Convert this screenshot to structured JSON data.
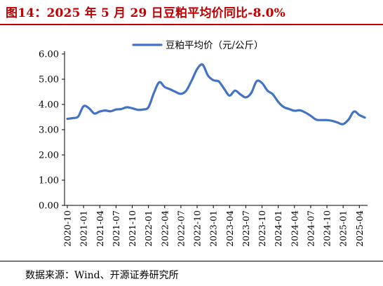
{
  "figure": {
    "title": "图14：2025 年 5 月 29 日豆粕平均价同比-8.0%",
    "source": "数据来源：Wind、开源证券研究所"
  },
  "colors": {
    "title": "#c00000",
    "series": "#4472c4",
    "axis": "#000000"
  },
  "chart_data": {
    "type": "line",
    "title": "",
    "xlabel": "",
    "ylabel": "",
    "ylim": [
      0,
      6
    ],
    "yticks": [
      "0.00",
      "1.00",
      "2.00",
      "3.00",
      "4.00",
      "5.00",
      "6.00"
    ],
    "grid": false,
    "legend_position": "top-center",
    "xticks": [
      "2020-10",
      "2021-01",
      "2021-04",
      "2021-07",
      "2021-10",
      "2022-01",
      "2022-04",
      "2022-07",
      "2022-10",
      "2023-01",
      "2023-04",
      "2023-07",
      "2023-10",
      "2024-01",
      "2024-04",
      "2024-07",
      "2024-10",
      "2025-01",
      "2025-04"
    ],
    "series": [
      {
        "name": "豆粕平均价（元/公斤）",
        "x": [
          "2020-10",
          "2020-11",
          "2020-12",
          "2021-01",
          "2021-02",
          "2021-03",
          "2021-04",
          "2021-05",
          "2021-06",
          "2021-07",
          "2021-08",
          "2021-09",
          "2021-10",
          "2021-11",
          "2021-12",
          "2022-01",
          "2022-02",
          "2022-03",
          "2022-04",
          "2022-05",
          "2022-06",
          "2022-07",
          "2022-08",
          "2022-09",
          "2022-10",
          "2022-11",
          "2022-12",
          "2023-01",
          "2023-02",
          "2023-03",
          "2023-04",
          "2023-05",
          "2023-06",
          "2023-07",
          "2023-08",
          "2023-09",
          "2023-10",
          "2023-11",
          "2023-12",
          "2024-01",
          "2024-02",
          "2024-03",
          "2024-04",
          "2024-05",
          "2024-06",
          "2024-07",
          "2024-08",
          "2024-09",
          "2024-10",
          "2024-11",
          "2024-12",
          "2025-01",
          "2025-02",
          "2025-03",
          "2025-04",
          "2025-05"
        ],
        "values": [
          3.43,
          3.46,
          3.52,
          3.93,
          3.85,
          3.64,
          3.72,
          3.76,
          3.73,
          3.8,
          3.82,
          3.89,
          3.85,
          3.79,
          3.8,
          3.89,
          4.45,
          4.88,
          4.69,
          4.6,
          4.5,
          4.42,
          4.55,
          4.95,
          5.4,
          5.58,
          5.15,
          4.96,
          4.91,
          4.62,
          4.35,
          4.55,
          4.4,
          4.28,
          4.45,
          4.92,
          4.85,
          4.55,
          4.4,
          4.1,
          3.9,
          3.82,
          3.75,
          3.77,
          3.68,
          3.55,
          3.4,
          3.38,
          3.38,
          3.35,
          3.28,
          3.22,
          3.4,
          3.72,
          3.58,
          3.48
        ]
      }
    ]
  }
}
